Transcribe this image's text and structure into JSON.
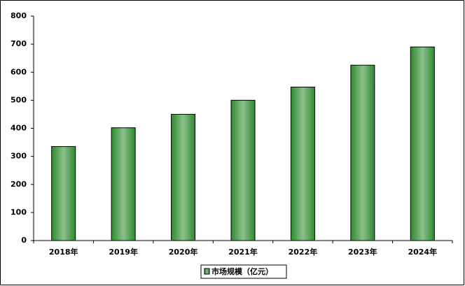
{
  "chart_data": {
    "type": "bar",
    "categories": [
      "2018年",
      "2019年",
      "2020年",
      "2021年",
      "2022年",
      "2023年",
      "2024年"
    ],
    "series": [
      {
        "name": "市场规模（亿元）",
        "color": "#2e8b2e",
        "values": [
          335,
          402,
          450,
          500,
          547,
          625,
          690
        ]
      }
    ],
    "ylim": [
      0,
      800
    ],
    "yticks": [
      0,
      100,
      200,
      300,
      400,
      500,
      600,
      700,
      800
    ],
    "grid": false,
    "legend": "bottom"
  }
}
